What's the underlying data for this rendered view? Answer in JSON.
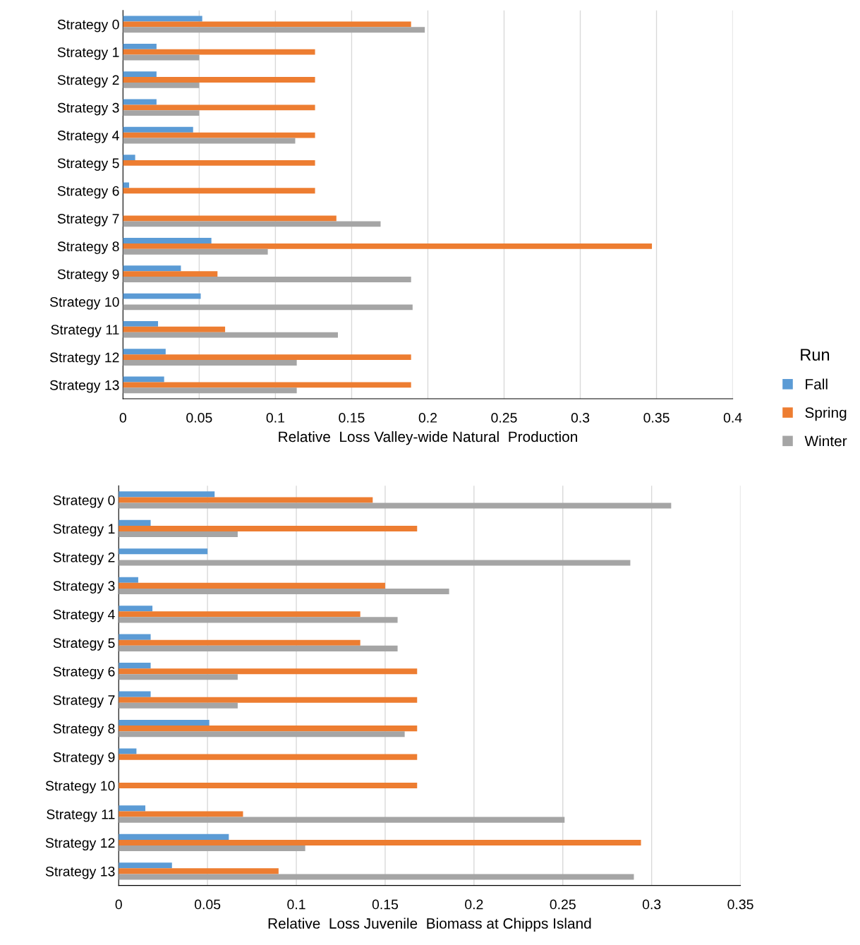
{
  "chart_data": [
    {
      "type": "bar",
      "orientation": "horizontal",
      "xlabel": "Relative  Loss Valley-wide Natural  Production",
      "legend_title": "Run",
      "legend": "right",
      "categories": [
        "Strategy 0",
        "Strategy 1",
        "Strategy 2",
        "Strategy 3",
        "Strategy 4",
        "Strategy 5",
        "Strategy 6",
        "Strategy 7",
        "Strategy 8",
        "Strategy 9",
        "Strategy 10",
        "Strategy 11",
        "Strategy 12",
        "Strategy 13"
      ],
      "series": [
        {
          "name": "Fall",
          "color": "#5b9bd5",
          "values": [
            0.052,
            0.022,
            0.022,
            0.022,
            0.046,
            0.008,
            0.004,
            0,
            0.058,
            0.038,
            0.051,
            0.023,
            0.028,
            0.027
          ]
        },
        {
          "name": "Spring",
          "color": "#ed7d31",
          "values": [
            0.189,
            0.126,
            0.126,
            0.126,
            0.126,
            0.126,
            0.126,
            0.14,
            0.347,
            0.062,
            0,
            0.067,
            0.189,
            0.189
          ]
        },
        {
          "name": "Winter",
          "color": "#a5a5a5",
          "values": [
            0.198,
            0.05,
            0.05,
            0.05,
            0.113,
            0,
            0,
            0.169,
            0.095,
            0.189,
            0.19,
            0.141,
            0.114,
            0.114
          ]
        }
      ],
      "xlim": [
        0,
        0.4
      ],
      "xticks": [
        0,
        0.05,
        0.1,
        0.15,
        0.2,
        0.25,
        0.3,
        0.35,
        0.4
      ],
      "grid": "x"
    },
    {
      "type": "bar",
      "orientation": "horizontal",
      "xlabel": "Relative  Loss Juvenile  Biomass at Chipps Island",
      "categories": [
        "Strategy 0",
        "Strategy 1",
        "Strategy 2",
        "Strategy 3",
        "Strategy 4",
        "Strategy 5",
        "Strategy 6",
        "Strategy 7",
        "Strategy 8",
        "Strategy 9",
        "Strategy 10",
        "Strategy 11",
        "Strategy 12",
        "Strategy 13"
      ],
      "series": [
        {
          "color": "#5b9bd5",
          "values": [
            0.054,
            0.018,
            0.05,
            0.011,
            0.019,
            0.018,
            0.018,
            0.018,
            0.051,
            0.01,
            0,
            0.015,
            0.062,
            0.03
          ]
        },
        {
          "color": "#ed7d31",
          "values": [
            0.143,
            0.168,
            0,
            0.15,
            0.136,
            0.136,
            0.168,
            0.168,
            0.168,
            0.168,
            0.168,
            0.07,
            0.294,
            0.09
          ]
        },
        {
          "color": "#a5a5a5",
          "values": [
            0.311,
            0.067,
            0.288,
            0.186,
            0.157,
            0.157,
            0.067,
            0.067,
            0.161,
            0,
            0,
            0.251,
            0.105,
            0.29
          ]
        }
      ],
      "xlim": [
        0,
        0.35
      ],
      "xticks": [
        0,
        0.05,
        0.1,
        0.15,
        0.2,
        0.25,
        0.3,
        0.35
      ],
      "grid": "x"
    }
  ]
}
